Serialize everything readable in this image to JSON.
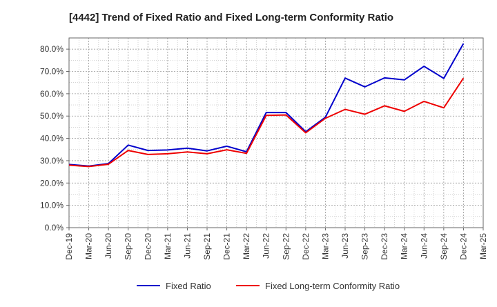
{
  "chart_data": {
    "type": "line",
    "title": "[4442]  Trend of Fixed Ratio and Fixed Long-term Conformity Ratio",
    "xlabel": "",
    "ylabel": "",
    "categories": [
      "Dec-19",
      "Mar-20",
      "Jun-20",
      "Sep-20",
      "Dec-20",
      "Mar-21",
      "Jun-21",
      "Sep-21",
      "Dec-21",
      "Mar-22",
      "Jun-22",
      "Sep-22",
      "Dec-22",
      "Mar-23",
      "Jun-23",
      "Sep-23",
      "Dec-23",
      "Mar-24",
      "Jun-24",
      "Sep-24",
      "Dec-24",
      "Mar-25"
    ],
    "ylim": [
      0,
      85
    ],
    "yticks": [
      0,
      10,
      20,
      30,
      40,
      50,
      60,
      70,
      80
    ],
    "ytick_labels": [
      "0.0%",
      "10.0%",
      "20.0%",
      "30.0%",
      "40.0%",
      "50.0%",
      "60.0%",
      "70.0%",
      "80.0%"
    ],
    "grid": true,
    "legend_position": "bottom",
    "series": [
      {
        "name": "Fixed Ratio",
        "color": "#0000cc",
        "values": [
          28.3,
          27.6,
          28.7,
          37.0,
          34.6,
          34.8,
          35.6,
          34.4,
          36.5,
          34.0,
          51.6,
          51.6,
          43.0,
          49.5,
          67.0,
          63.1,
          67.1,
          66.2,
          72.3,
          66.9,
          82.5,
          null
        ]
      },
      {
        "name": "Fixed Long-term Conformity Ratio",
        "color": "#ee0000",
        "values": [
          28.0,
          27.4,
          28.4,
          34.6,
          32.8,
          33.1,
          33.9,
          33.1,
          34.9,
          33.3,
          50.3,
          50.5,
          42.5,
          49.0,
          53.0,
          50.8,
          54.6,
          52.1,
          56.6,
          53.7,
          67.0,
          null
        ]
      }
    ]
  }
}
